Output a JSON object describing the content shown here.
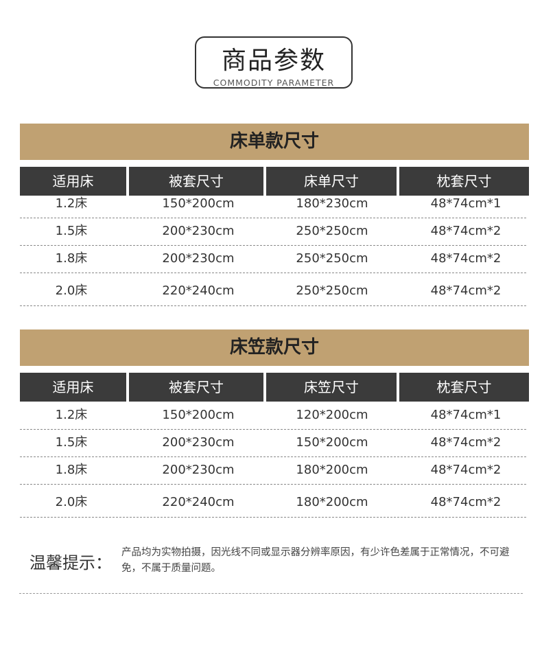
{
  "header": {
    "title": "商品参数",
    "subtitle": "COMMODITY PARAMETER"
  },
  "tables": [
    {
      "title": "床单款尺寸",
      "columns": [
        "适用床",
        "被套尺寸",
        "床单尺寸",
        "枕套尺寸"
      ],
      "rows": [
        [
          "1.2床",
          "150*200cm",
          "180*230cm",
          "48*74cm*1"
        ],
        [
          "1.5床",
          "200*230cm",
          "250*250cm",
          "48*74cm*2"
        ],
        [
          "1.8床",
          "200*230cm",
          "250*250cm",
          "48*74cm*2"
        ],
        [
          "2.0床",
          "220*240cm",
          "250*250cm",
          "48*74cm*2"
        ]
      ]
    },
    {
      "title": "床笠款尺寸",
      "columns": [
        "适用床",
        "被套尺寸",
        "床笠尺寸",
        "枕套尺寸"
      ],
      "rows": [
        [
          "1.2床",
          "150*200cm",
          "120*200cm",
          "48*74cm*1"
        ],
        [
          "1.5床",
          "200*230cm",
          "150*200cm",
          "48*74cm*2"
        ],
        [
          "1.8床",
          "200*230cm",
          "180*200cm",
          "48*74cm*2"
        ],
        [
          "2.0床",
          "220*240cm",
          "180*200cm",
          "48*74cm*2"
        ]
      ]
    }
  ],
  "notice": {
    "label": "温馨提示：",
    "text": "产品均为实物拍摄，因光线不同或显示器分辨率原因，有少许色差属于正常情况，不可避免，不属于质量问题。"
  },
  "colors": {
    "banner": "#c0a172",
    "header": "#3b3b3b"
  }
}
